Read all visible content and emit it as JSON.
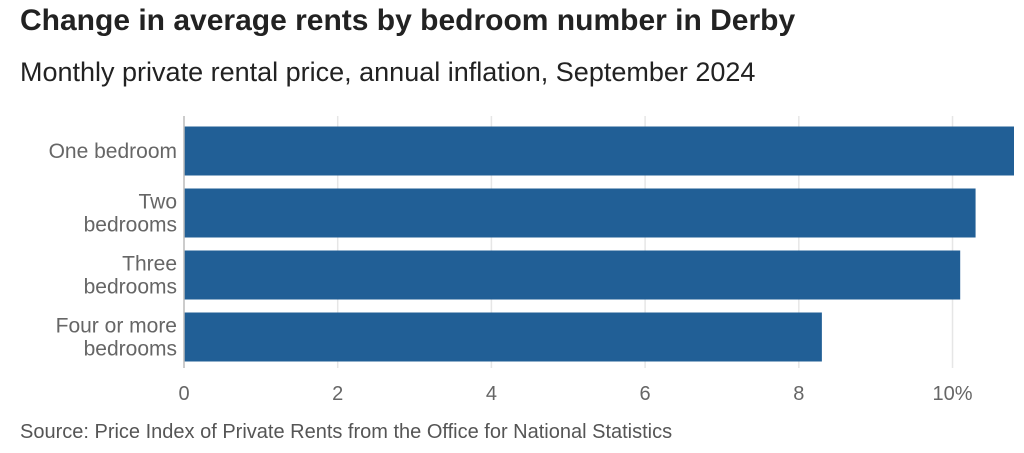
{
  "chart_data": {
    "type": "bar",
    "orientation": "horizontal",
    "title": "Change in average rents by bedroom number in Derby",
    "subtitle": "Monthly private rental price, annual inflation, September 2024",
    "source": "Source: Price Index of Private Rents from the Office for National Statistics",
    "categories": [
      [
        "One bedroom"
      ],
      [
        "Two",
        "bedrooms"
      ],
      [
        "Three",
        "bedrooms"
      ],
      [
        "Four or more",
        "bedrooms"
      ]
    ],
    "values": [
      10.8,
      10.3,
      10.1,
      8.3
    ],
    "xlim": [
      0,
      10.8
    ],
    "ticks": [
      0,
      2,
      4,
      6,
      8,
      10
    ],
    "tick_labels": [
      "0",
      "2",
      "4",
      "6",
      "8",
      "10%"
    ],
    "grid": true,
    "colors": {
      "bar": "#215f96",
      "grid": "#e6e6e6",
      "axis": "#bbbbbb"
    }
  }
}
